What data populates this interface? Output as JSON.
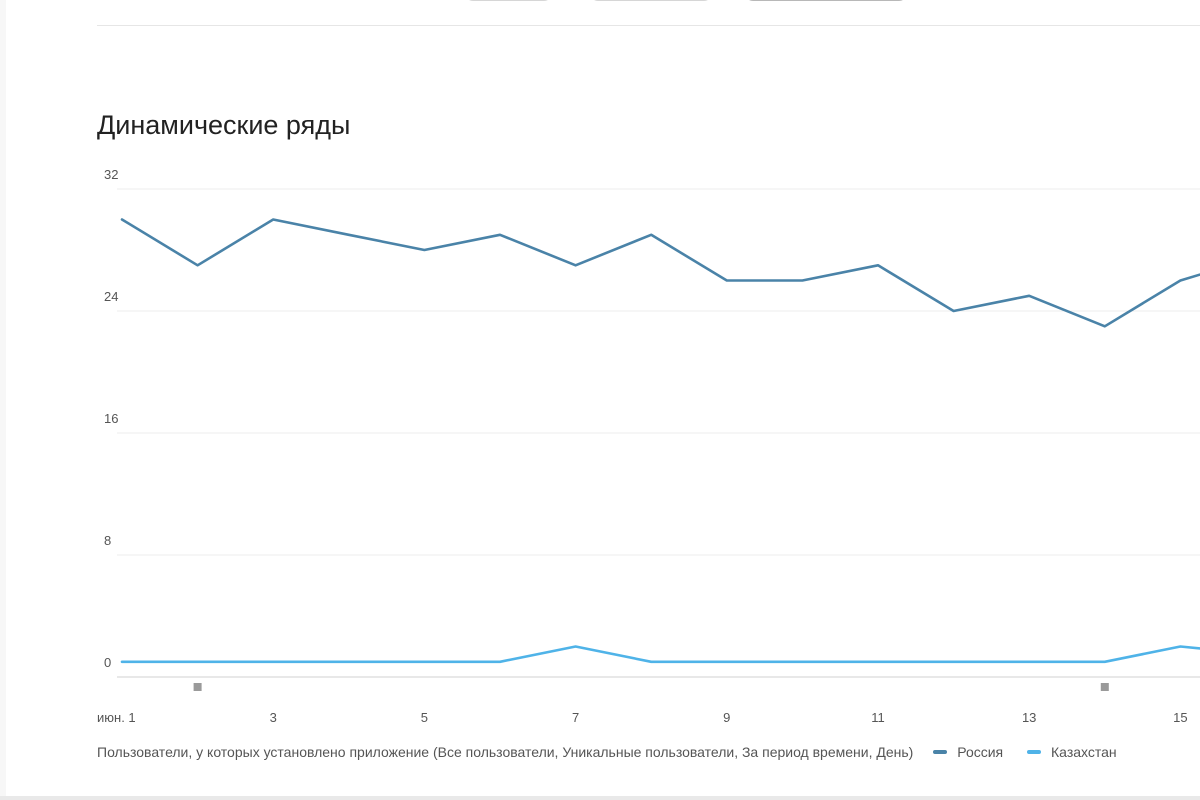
{
  "chart_data": {
    "type": "line",
    "title": "Динамические ряды",
    "x_tick_labels": [
      {
        "day": 1,
        "label": "июн. 1"
      },
      {
        "day": 3,
        "label": "3"
      },
      {
        "day": 5,
        "label": "5"
      },
      {
        "day": 7,
        "label": "7"
      },
      {
        "day": 9,
        "label": "9"
      },
      {
        "day": 11,
        "label": "11"
      },
      {
        "day": 13,
        "label": "13"
      },
      {
        "day": 15,
        "label": "15"
      }
    ],
    "y_ticks": [
      "0",
      "8",
      "16",
      "24",
      "32"
    ],
    "ylim": [
      0,
      32
    ],
    "grid": true,
    "x": [
      1,
      2,
      3,
      4,
      5,
      6,
      7,
      8,
      9,
      10,
      11,
      12,
      13,
      14,
      15,
      16
    ],
    "series": [
      {
        "name": "Россия",
        "color": "#4a83a8",
        "values": [
          30,
          27,
          30,
          29,
          28,
          29,
          27,
          29,
          26,
          26,
          27,
          24,
          25,
          23,
          26,
          27.5
        ]
      },
      {
        "name": "Казахстан",
        "color": "#4fb3e8",
        "values": [
          1,
          1,
          1,
          1,
          1,
          1,
          2,
          1,
          1,
          1,
          1,
          1,
          1,
          1,
          2,
          1.5
        ]
      }
    ],
    "event_markers": [
      2,
      14
    ],
    "legend": {
      "metric": "Пользователи, у которых установлено приложение (Все пользователи, Уникальные пользователи, За период времени, День)",
      "placement": "bottom"
    }
  }
}
